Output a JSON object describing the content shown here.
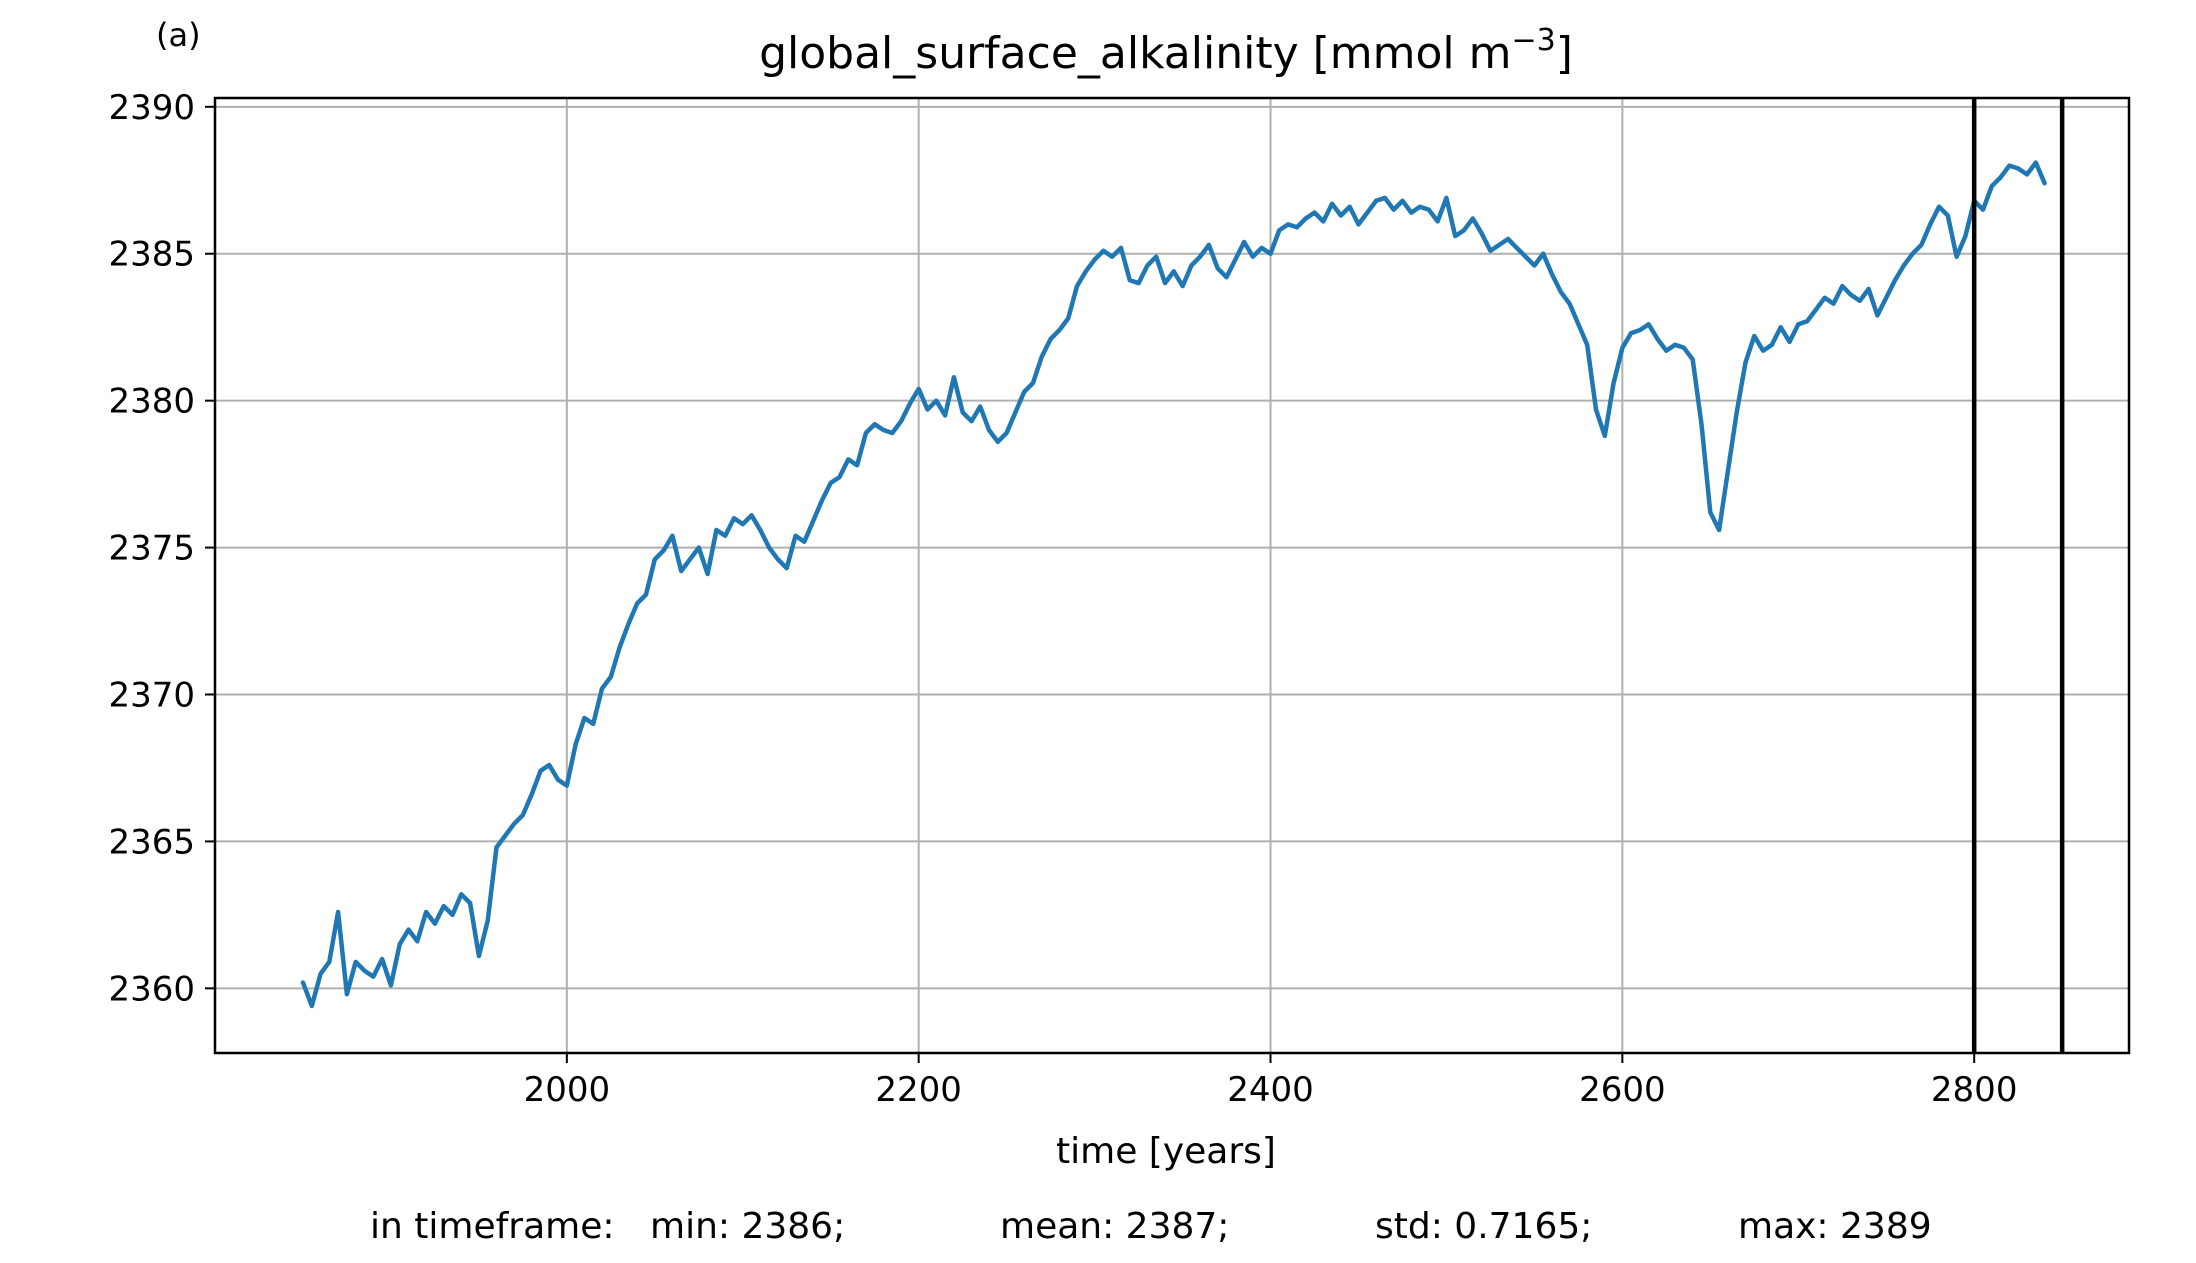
{
  "panel_label": "(a)",
  "chart_data": {
    "type": "line",
    "title_main": "global_surface_alkalinity [mmol m",
    "title_sup": "−3",
    "title_close": "]",
    "xlabel": "time [years]",
    "ylabel": "",
    "xlim": [
      1800,
      2888
    ],
    "ylim": [
      2357.8,
      2390.3
    ],
    "xticks": [
      2000,
      2200,
      2400,
      2600,
      2800
    ],
    "yticks": [
      2360,
      2365,
      2370,
      2375,
      2380,
      2385,
      2390
    ],
    "grid": true,
    "line_color": "#1f77b4",
    "marker_color": "#000000",
    "vertical_markers": [
      2800,
      2850
    ],
    "series": [
      {
        "x": [
          1850,
          1855,
          1860,
          1865,
          1870,
          1875,
          1880,
          1885,
          1890,
          1895,
          1900,
          1905,
          1910,
          1915,
          1920,
          1925,
          1930,
          1935,
          1940,
          1945,
          1950,
          1955,
          1960,
          1965,
          1970,
          1975,
          1980,
          1985,
          1990,
          1995,
          2000,
          2005,
          2010,
          2015,
          2020,
          2025,
          2030,
          2035,
          2040,
          2045,
          2050,
          2055,
          2060,
          2065,
          2070,
          2075,
          2080,
          2085,
          2090,
          2095,
          2100,
          2105,
          2110,
          2115,
          2120,
          2125,
          2130,
          2135,
          2140,
          2145,
          2150,
          2155,
          2160,
          2165,
          2170,
          2175,
          2180,
          2185,
          2190,
          2195,
          2200,
          2205,
          2210,
          2215,
          2220,
          2225,
          2230,
          2235,
          2240,
          2245,
          2250,
          2255,
          2260,
          2265,
          2270,
          2275,
          2280,
          2285,
          2290,
          2295,
          2300,
          2305,
          2310,
          2315,
          2320,
          2325,
          2330,
          2335,
          2340,
          2345,
          2350,
          2355,
          2360,
          2365,
          2370,
          2375,
          2380,
          2385,
          2390,
          2395,
          2400,
          2405,
          2410,
          2415,
          2420,
          2425,
          2430,
          2435,
          2440,
          2445,
          2450,
          2455,
          2460,
          2465,
          2470,
          2475,
          2480,
          2485,
          2490,
          2495,
          2500,
          2505,
          2510,
          2515,
          2520,
          2525,
          2530,
          2535,
          2540,
          2545,
          2550,
          2555,
          2560,
          2565,
          2570,
          2575,
          2580,
          2585,
          2590,
          2595,
          2600,
          2605,
          2610,
          2615,
          2620,
          2625,
          2630,
          2635,
          2640,
          2645,
          2650,
          2655,
          2660,
          2665,
          2670,
          2675,
          2680,
          2685,
          2690,
          2695,
          2700,
          2705,
          2710,
          2715,
          2720,
          2725,
          2730,
          2735,
          2740,
          2745,
          2750,
          2755,
          2760,
          2765,
          2770,
          2775,
          2780,
          2785,
          2790,
          2795,
          2800,
          2805,
          2810,
          2815,
          2820,
          2825,
          2830,
          2835,
          2840
        ],
        "y": [
          2360.2,
          2359.4,
          2360.5,
          2360.9,
          2362.6,
          2359.8,
          2360.9,
          2360.6,
          2360.4,
          2361.0,
          2360.1,
          2361.5,
          2362.0,
          2361.6,
          2362.6,
          2362.2,
          2362.8,
          2362.5,
          2363.2,
          2362.9,
          2361.1,
          2362.3,
          2364.8,
          2365.2,
          2365.6,
          2365.9,
          2366.6,
          2367.4,
          2367.6,
          2367.1,
          2366.9,
          2368.3,
          2369.2,
          2369.0,
          2370.2,
          2370.6,
          2371.6,
          2372.4,
          2373.1,
          2373.4,
          2374.6,
          2374.9,
          2375.4,
          2374.2,
          2374.6,
          2375.0,
          2374.1,
          2375.6,
          2375.4,
          2376.0,
          2375.8,
          2376.1,
          2375.6,
          2375.0,
          2374.6,
          2374.3,
          2375.4,
          2375.2,
          2375.9,
          2376.6,
          2377.2,
          2377.4,
          2378.0,
          2377.8,
          2378.9,
          2379.2,
          2379.0,
          2378.9,
          2379.3,
          2379.9,
          2380.4,
          2379.7,
          2380.0,
          2379.5,
          2380.8,
          2379.6,
          2379.3,
          2379.8,
          2379.0,
          2378.6,
          2378.9,
          2379.6,
          2380.3,
          2380.6,
          2381.5,
          2382.1,
          2382.4,
          2382.8,
          2383.9,
          2384.4,
          2384.8,
          2385.1,
          2384.9,
          2385.2,
          2384.1,
          2384.0,
          2384.6,
          2384.9,
          2384.0,
          2384.4,
          2383.9,
          2384.6,
          2384.9,
          2385.3,
          2384.5,
          2384.2,
          2384.8,
          2385.4,
          2384.9,
          2385.2,
          2385.0,
          2385.8,
          2386.0,
          2385.9,
          2386.2,
          2386.4,
          2386.1,
          2386.7,
          2386.3,
          2386.6,
          2386.0,
          2386.4,
          2386.8,
          2386.9,
          2386.5,
          2386.8,
          2386.4,
          2386.6,
          2386.5,
          2386.1,
          2386.9,
          2385.6,
          2385.8,
          2386.2,
          2385.7,
          2385.1,
          2385.3,
          2385.5,
          2385.2,
          2384.9,
          2384.6,
          2385.0,
          2384.3,
          2383.7,
          2383.3,
          2382.6,
          2381.9,
          2379.7,
          2378.8,
          2380.6,
          2381.8,
          2382.3,
          2382.4,
          2382.6,
          2382.1,
          2381.7,
          2381.9,
          2381.8,
          2381.4,
          2379.2,
          2376.2,
          2375.6,
          2377.6,
          2379.6,
          2381.3,
          2382.2,
          2381.7,
          2381.9,
          2382.5,
          2382.0,
          2382.6,
          2382.7,
          2383.1,
          2383.5,
          2383.3,
          2383.9,
          2383.6,
          2383.4,
          2383.8,
          2382.9,
          2383.5,
          2384.1,
          2384.6,
          2385.0,
          2385.3,
          2386.0,
          2386.6,
          2386.3,
          2384.9,
          2385.6,
          2386.8,
          2386.5,
          2387.3,
          2387.6,
          2388.0,
          2387.9,
          2387.7,
          2388.1,
          2387.4
        ]
      }
    ]
  },
  "stats": {
    "prefix": "in timeframe:",
    "min": "min: 2386;",
    "mean": "mean: 2387;",
    "std": "std: 0.7165;",
    "max": "max: 2389"
  }
}
